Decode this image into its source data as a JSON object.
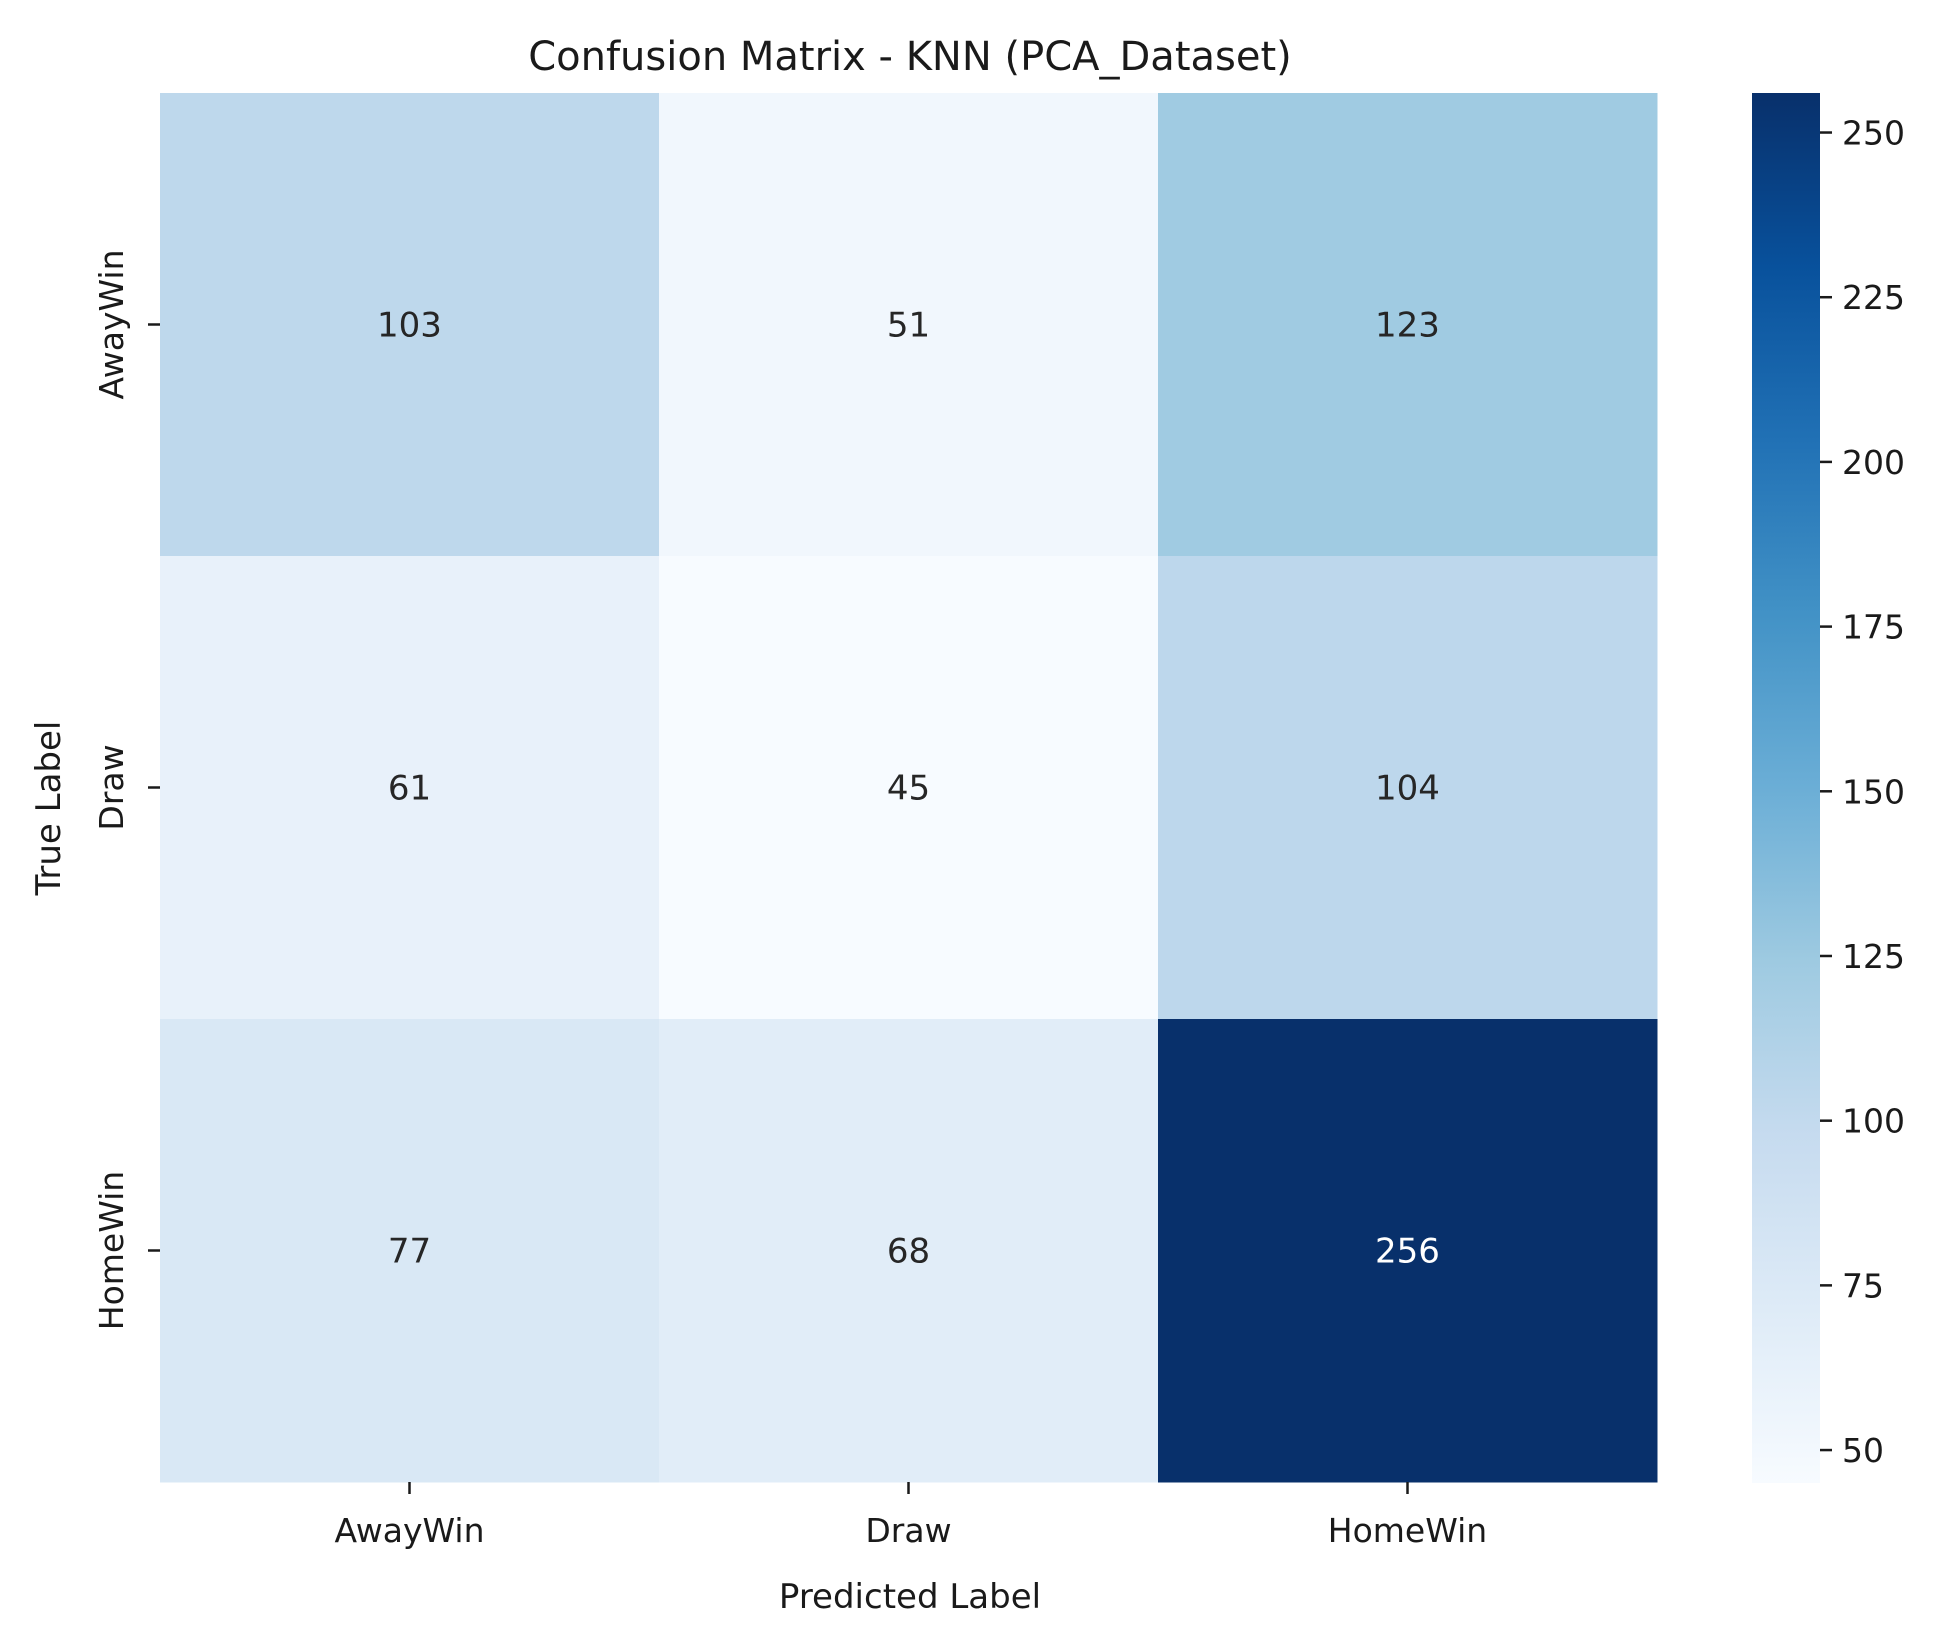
{
  "chart_data": {
    "type": "heatmap",
    "title": "Confusion Matrix - KNN (PCA_Dataset)",
    "xlabel": "Predicted Label",
    "ylabel": "True Label",
    "x_categories": [
      "AwayWin",
      "Draw",
      "HomeWin"
    ],
    "y_categories": [
      "AwayWin",
      "Draw",
      "HomeWin"
    ],
    "values": [
      [
        103,
        51,
        123
      ],
      [
        61,
        45,
        104
      ],
      [
        77,
        68,
        256
      ]
    ],
    "colormap": "Blues",
    "colorbar": {
      "range": [
        45,
        256
      ],
      "ticks": [
        50,
        75,
        100,
        125,
        150,
        175,
        200,
        225,
        250
      ]
    }
  }
}
